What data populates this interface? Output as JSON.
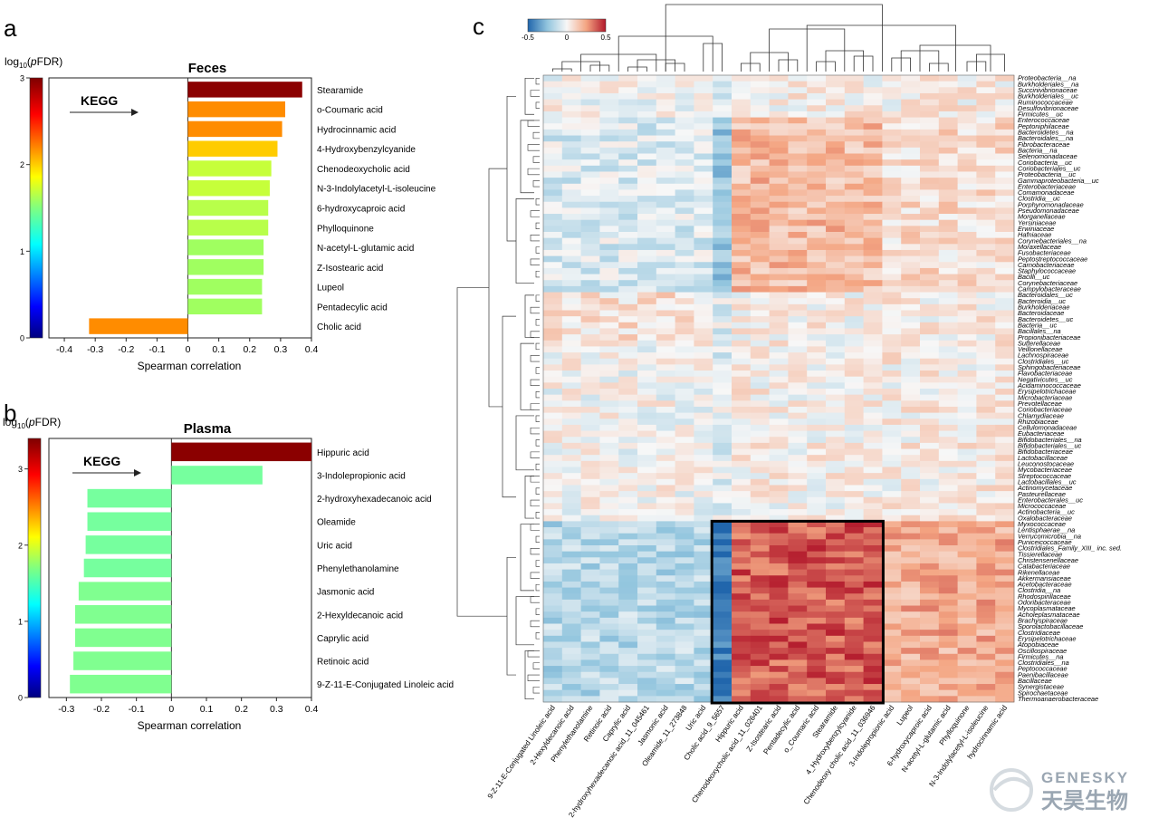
{
  "panels": {
    "a": "a",
    "b": "b",
    "c": "c"
  },
  "watermark": {
    "brand": "GENESKY",
    "cn": "天昊生物"
  },
  "chart_data": [
    {
      "type": "bar",
      "orientation": "horizontal",
      "panel": "a",
      "title": "Feces",
      "xlabel": "Spearman correlation",
      "xlim": [
        -0.45,
        0.4
      ],
      "xticks": [
        -0.4,
        -0.3,
        -0.2,
        -0.1,
        0,
        0.1,
        0.2,
        0.3,
        0.4
      ],
      "colorbar": {
        "label": "log10(pFDR)",
        "ticks": [
          0,
          1,
          2,
          3
        ]
      },
      "annotation": "KEGG",
      "categories": [
        "Stearamide",
        "o-Coumaric acid",
        "Hydrocinnamic acid",
        "4-Hydroxybenzylcyanide",
        "Chenodeoxycholic acid",
        "N-3-Indolylacetyl-L-isoleucine",
        "6-hydroxycaproic acid",
        "Phylloquinone",
        "N-acetyl-L-glutamic acid",
        "Z-Isostearic acid",
        "Lupeol",
        "Pentadecylic acid",
        "Cholic acid"
      ],
      "values": [
        0.37,
        0.315,
        0.305,
        0.29,
        0.27,
        0.265,
        0.26,
        0.26,
        0.245,
        0.245,
        0.24,
        0.24,
        -0.32
      ],
      "color_values": [
        3.0,
        2.2,
        2.2,
        2.0,
        1.7,
        1.65,
        1.6,
        1.6,
        1.5,
        1.5,
        1.5,
        1.5,
        2.2
      ],
      "colors": [
        "#8b0000",
        "#ff8c00",
        "#ff8c00",
        "#ffcc00",
        "#c6ff3a",
        "#c6ff3a",
        "#b8ff4a",
        "#b8ff4a",
        "#a0ff60",
        "#a0ff60",
        "#a0ff60",
        "#a0ff60",
        "#ff8c00"
      ]
    },
    {
      "type": "bar",
      "orientation": "horizontal",
      "panel": "b",
      "title": "Plasma",
      "xlabel": "Spearman correlation",
      "xlim": [
        -0.35,
        0.4
      ],
      "xticks": [
        -0.3,
        -0.2,
        -0.1,
        0,
        0.1,
        0.2,
        0.3,
        0.4
      ],
      "colorbar": {
        "label": "log10(pFDR)",
        "ticks": [
          0,
          1,
          2,
          3
        ]
      },
      "annotation": "KEGG",
      "categories": [
        "Hippuric acid",
        "3-Indolepropionic acid",
        "2-hydroxyhexadecanoic acid",
        "Oleamide",
        "Uric acid",
        "Phenylethanolamine",
        "Jasmonic acid",
        "2-Hexyldecanoic acid",
        "Caprylic acid",
        "Retinoic acid",
        "9-Z-11-E-Conjugated Linoleic acid"
      ],
      "values": [
        0.4,
        0.26,
        -0.24,
        -0.24,
        -0.245,
        -0.25,
        -0.265,
        -0.275,
        -0.275,
        -0.28,
        -0.29
      ],
      "colors": [
        "#8b0000",
        "#76ff9e",
        "#76ff9e",
        "#76ff9e",
        "#76ff9e",
        "#76ff9e",
        "#80ff90",
        "#80ff90",
        "#80ff90",
        "#80ff90",
        "#80ff90"
      ]
    },
    {
      "type": "heatmap",
      "panel": "c",
      "colorbar": {
        "ticks": [
          "-0.5",
          "0",
          "0.5"
        ],
        "range": [
          -0.5,
          0.5
        ],
        "low": "#2166ac",
        "mid": "#f7f7f7",
        "high": "#b2182b"
      },
      "columns": [
        "9-Z-11-E-Conjugated Linoleic acid",
        "2-Hexyldecanoic acid",
        "Phenylethanolamine",
        "Retinoic acid",
        "Caprylic acid",
        "2-hydroxyhexadecanoic acid_11_045461",
        "Jasmonic acid",
        "Oleamide_11_273848",
        "Uric acid",
        "Cholic acid_9_5657",
        "Hippuric acid",
        "Chenodeoxycholic acid_11_026401",
        "Z-Isostearic acid",
        "Pentadecylic acid",
        "o_Coumaric acid",
        "Stearamide",
        "4_Hydroxybenzylcyanide",
        "Chenodeoxy cholic acid_11_036946",
        "3-Indolepropionic acid",
        "Lupeol",
        "6-hydroxycaproic acid",
        "N-acetyl-L-glutamic acid",
        "Phylloquinone",
        "N-3-Indolylacetyl-L-isoleucine",
        "hydrocinnamic acid"
      ],
      "rows": [
        "Proteobacteria__na",
        "Burkholderiales__na",
        "Succinivibrionaceae",
        "Burkholderiales__uc",
        "Ruminococcaceae",
        "Desulfovibrionaceae",
        "Firmicutes__uc",
        "Enterococcaceae",
        "Peptoniphilaceae",
        "Bacteroidetes__na",
        "Bacteroidales__na",
        "Fibrobacteraceae",
        "Bacteria__na",
        "Selenomonadaceae",
        "Coriobacteria__uc",
        "Coriobacteriales__uc",
        "Proteobacteria__uc",
        "Gammaproteobacteria__uc",
        "Enterobacteriaceae",
        "Comamonadaceae",
        "Clostridia__uc",
        "Porphyromonadaceae",
        "Pseudomonadaceae",
        "Morganellaceae",
        "Yersiniaceae",
        "Erwiniaceae",
        "Hafniaceae",
        "Corynebacteriales__na",
        "Moraxellaceae",
        "Fusobacteriaceae",
        "Peptostreptococcaceae",
        "Carnobacteriaceae",
        "Staphylococcaceae",
        "Bacilli__uc",
        "Corynebacteriaceae",
        "Campylobacteraceae",
        "Bacteroidales__uc",
        "Bacteroidia__uc",
        "Burkholderiaceae",
        "Bacteroidaceae",
        "Bacteroidetes__uc",
        "Bacteria__uc",
        "Bacillales__na",
        "Propionibacteriaceae",
        "Sutterellaceae",
        "Veillonellaceae",
        "Lachnospiraceae",
        "Clostridiales__uc",
        "Sphingobacteriaceae",
        "Flavobacteriaceae",
        "Negativicutes__uc",
        "Acidaminococcaceae",
        "Erysipelotrichaceae",
        "Microbacteriaceae",
        "Prevotellaceae",
        "Coriobacteriaceae",
        "Chlamydiaceae",
        "Rhizobiaceae",
        "Cellulomonadaceae",
        "Eubacteriaceae",
        "Bifidobacteriales__na",
        "Bifidobacteriales__uc",
        "Bifidobacteriaceae",
        "Lactobacillaceae",
        "Leuconostocaceae",
        "Mycobacteriaceae",
        "Streptococcaceae",
        "Lactobacillales__uc",
        "Actinomycetaceae",
        "Pasteurellaceae",
        "Enterobacterales__uc",
        "Micrococcaceae",
        "Actinobacteria__uc",
        "Oxalobacteraceae",
        "Myxococcaceae",
        "Lentisphaerae__na",
        "Verrucomicrobia__na",
        "Puniceicoccaceae",
        "Clostridiales_Family_XIII_ inc. sed.",
        "Tissierellaceae",
        "Christensenellaceae",
        "Catabacteriaceae",
        "Rikenellaceae",
        "Akkermansiaceae",
        "Acetobacteraceae",
        "Clostridia__na",
        "Rhodospirillaceae",
        "Odoribacteraceae",
        "Mycoplasmataceae",
        "Acholeplasmataceae",
        "Brachyspiraceae",
        "Sporolactobacillaceae",
        "Clostridiaceae",
        "Erysipelotrichaceae",
        "Atopobiaceae",
        "Oscillospiraceae",
        "Firmicutes__na",
        "Clostridiales__na",
        "Peptococcaceae",
        "Paenibacillaceae",
        "Bacillaceae",
        "Synergistaceae",
        "Spirochaetaceae",
        "Thermoanaerobacteraceae"
      ]
    }
  ]
}
